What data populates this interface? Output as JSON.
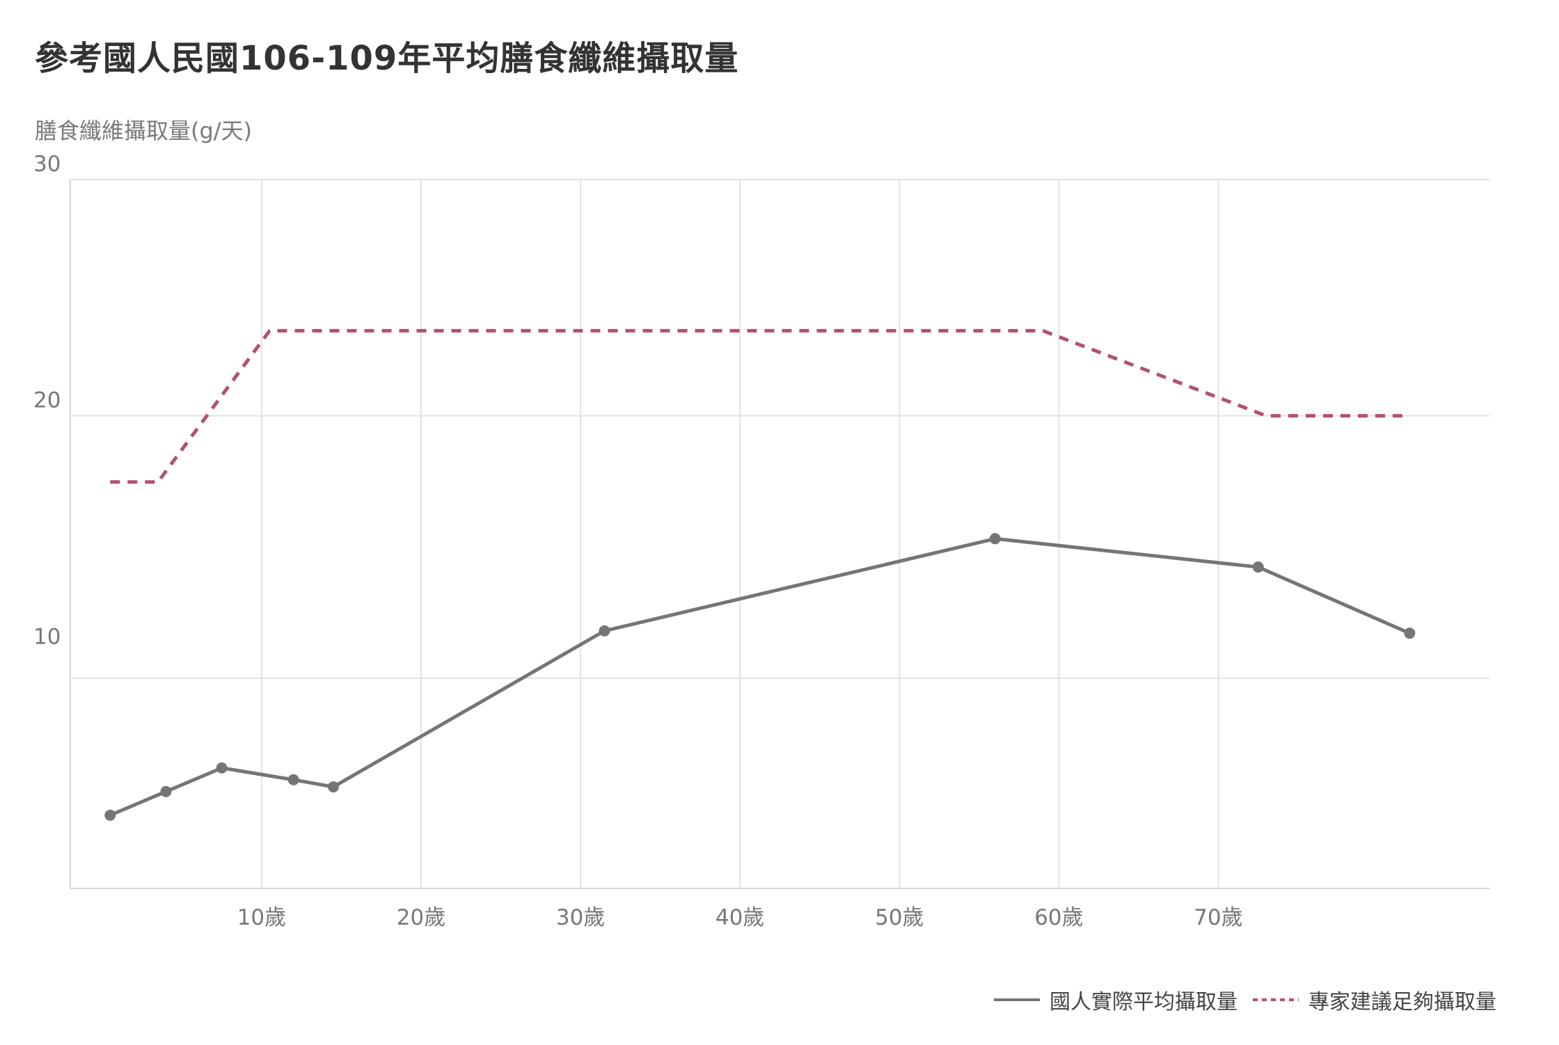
{
  "chart_data": {
    "type": "line",
    "title": "參考國人民國106-109年平均膳食纖維攝取量",
    "ylabel": "膳食纖維攝取量(g/天)",
    "xlabel": "",
    "xlim": [
      -2,
      87
    ],
    "ylim": [
      0,
      30
    ],
    "x_ticks": [
      10,
      20,
      30,
      40,
      50,
      60,
      70
    ],
    "x_tick_labels": [
      "10歲",
      "20歲",
      "30歲",
      "40歲",
      "50歲",
      "60歲",
      "70歲"
    ],
    "y_tick_labels": [
      {
        "value": 30,
        "label": "30"
      },
      {
        "value": 20,
        "label": "20"
      },
      {
        "value": 10,
        "label": "10"
      }
    ],
    "y_gridlines": [
      8.9,
      20,
      30
    ],
    "x_gridlines": [
      10,
      20,
      30,
      40,
      50,
      60,
      70
    ],
    "grid": true,
    "legend_position": "bottom-right",
    "series": [
      {
        "name": "國人實際平均攝取量",
        "style": "solid",
        "color": "#757575",
        "markers": true,
        "points": [
          {
            "x": 0.5,
            "y": 3.1
          },
          {
            "x": 4,
            "y": 4.1
          },
          {
            "x": 7.5,
            "y": 5.1
          },
          {
            "x": 12,
            "y": 4.6
          },
          {
            "x": 14.5,
            "y": 4.3
          },
          {
            "x": 31.5,
            "y": 10.9
          },
          {
            "x": 56,
            "y": 14.8
          },
          {
            "x": 72.5,
            "y": 13.6
          },
          {
            "x": 82,
            "y": 10.8
          }
        ]
      },
      {
        "name": "專家建議足夠攝取量",
        "style": "dashed",
        "color": "#b4506f",
        "markers": false,
        "points": [
          {
            "x": 0.5,
            "y": 17.2
          },
          {
            "x": 3.5,
            "y": 17.2
          },
          {
            "x": 10.5,
            "y": 23.6
          },
          {
            "x": 59,
            "y": 23.6
          },
          {
            "x": 73,
            "y": 20
          },
          {
            "x": 82,
            "y": 20
          }
        ]
      }
    ]
  }
}
